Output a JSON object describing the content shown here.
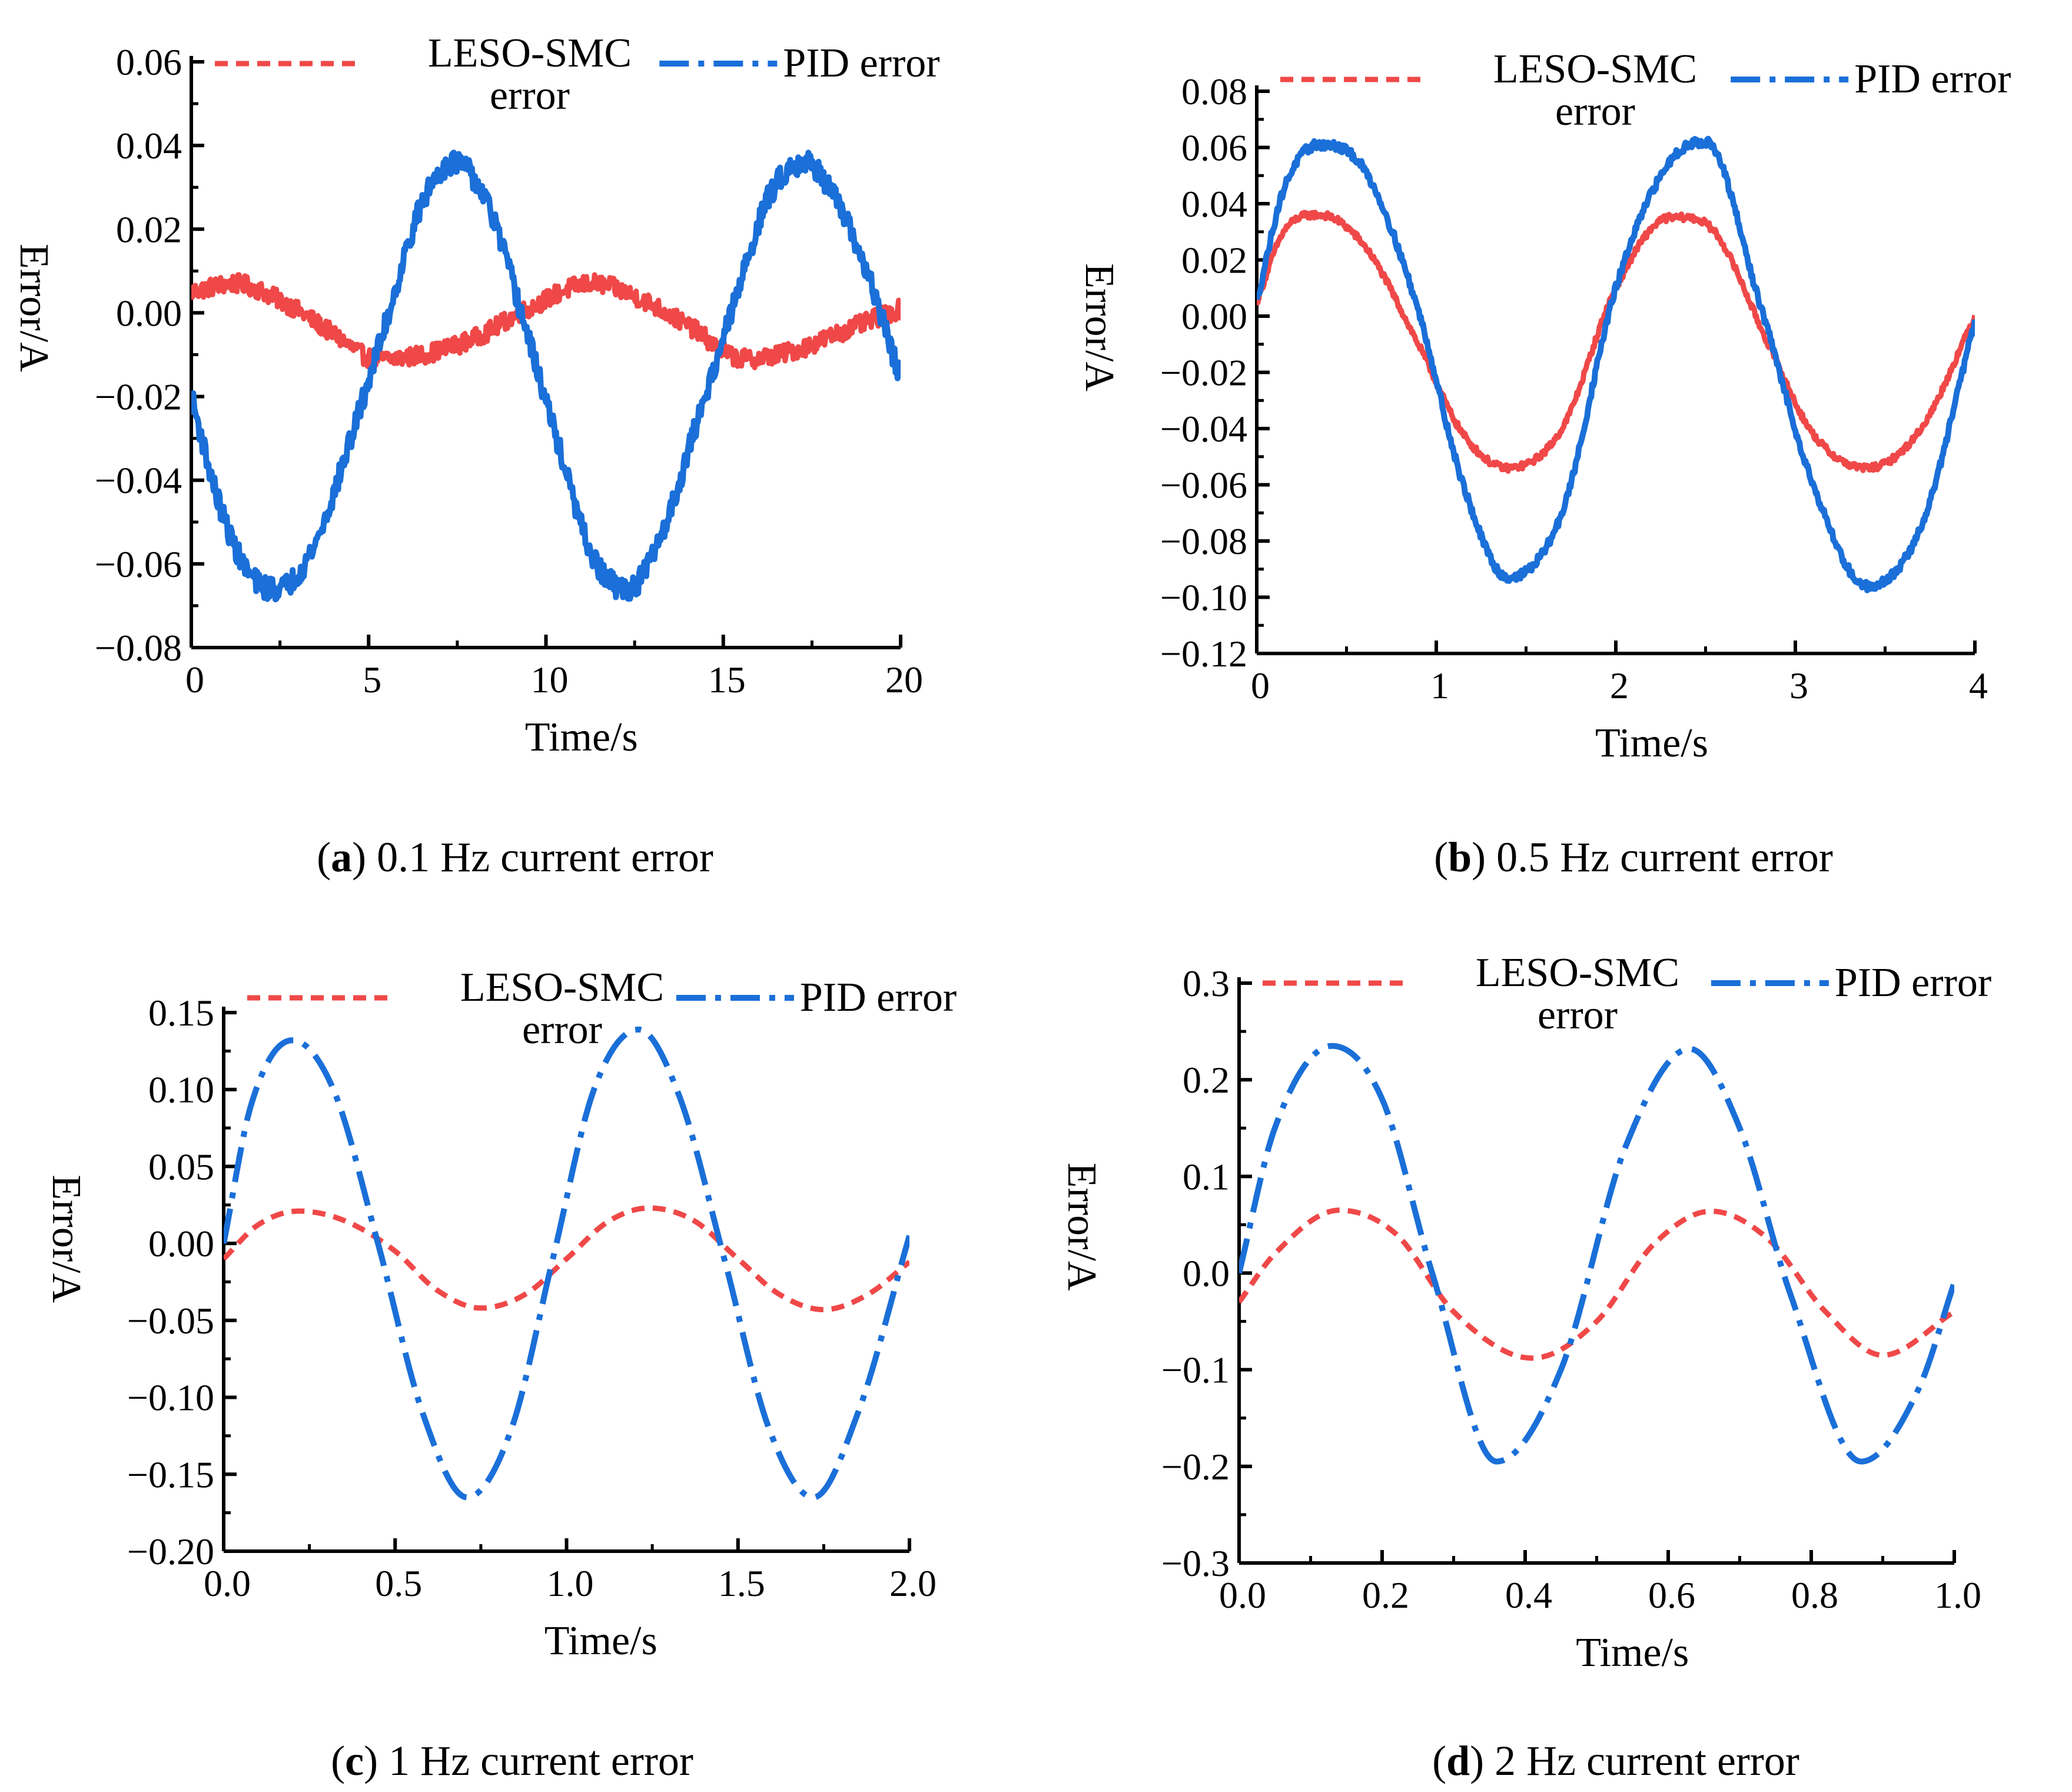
{
  "chart_data": [
    {
      "id": "a",
      "type": "line",
      "caption_letter": "a",
      "caption_text": "0.1 Hz current error",
      "xlabel": "Time/s",
      "ylabel": "Error/A",
      "xlim": [
        0,
        20
      ],
      "ylim": [
        -0.08,
        0.06
      ],
      "xticks": [
        0,
        5,
        10,
        15,
        20
      ],
      "xtick_labels": [
        "0",
        "5",
        "10",
        "15",
        "20"
      ],
      "yticks": [
        0.06,
        0.04,
        0.02,
        0.0,
        -0.02,
        -0.04,
        -0.06,
        -0.08
      ],
      "ytick_labels": [
        "0.06",
        "0.04",
        "0.02",
        "0.00",
        "−0.02",
        "−0.04",
        "−0.06",
        "−0.08"
      ],
      "legend": [
        "LESO-SMC error",
        "PID error"
      ],
      "series": [
        {
          "name": "LESO-SMC error",
          "color": "#f04848",
          "style": "dash",
          "width": 9,
          "noise": 0.0022,
          "x": [
            0,
            1.2,
            2.5,
            4,
            5.2,
            6.5,
            8,
            9.5,
            11.3,
            12.5,
            14,
            15.6,
            17,
            18.5,
            20
          ],
          "y": [
            0.005,
            0.007,
            0.003,
            -0.005,
            -0.011,
            -0.01,
            -0.006,
            0.001,
            0.007,
            0.004,
            -0.003,
            -0.011,
            -0.009,
            -0.004,
            0.001
          ]
        },
        {
          "name": "PID error",
          "color": "#1a6fd8",
          "style": "dashdot",
          "width": 10,
          "noise": 0.0028,
          "x": [
            0,
            0.8,
            1.6,
            2.4,
            3.5,
            4.5,
            5.5,
            6.5,
            7.4,
            8.4,
            9.3,
            10.3,
            11.3,
            12.3,
            13.3,
            14.3,
            15.3,
            16.3,
            17.3,
            18.4,
            19.2,
            20
          ],
          "y": [
            -0.02,
            -0.046,
            -0.062,
            -0.066,
            -0.055,
            -0.03,
            -0.002,
            0.026,
            0.036,
            0.025,
            0.0,
            -0.03,
            -0.058,
            -0.066,
            -0.052,
            -0.025,
            0.002,
            0.028,
            0.036,
            0.023,
            0.006,
            -0.016
          ]
        }
      ]
    },
    {
      "id": "b",
      "type": "line",
      "caption_letter": "b",
      "caption_text": "0.5 Hz current error",
      "xlabel": "Time/s",
      "ylabel": "Error/A",
      "xlim": [
        0,
        4
      ],
      "ylim": [
        -0.12,
        0.08
      ],
      "xticks": [
        0,
        1,
        2,
        3,
        4
      ],
      "xtick_labels": [
        "0",
        "1",
        "2",
        "3",
        "4"
      ],
      "yticks": [
        0.08,
        0.06,
        0.04,
        0.02,
        0.0,
        -0.02,
        -0.04,
        -0.06,
        -0.08,
        -0.1,
        -0.12
      ],
      "ytick_labels": [
        "0.08",
        "0.06",
        "0.04",
        "0.02",
        "0.00",
        "−0.02",
        "−0.04",
        "−0.06",
        "−0.08",
        "−0.10",
        "−0.12"
      ],
      "legend": [
        "LESO-SMC error",
        "PID error"
      ],
      "series": [
        {
          "name": "LESO-SMC error",
          "color": "#f04848",
          "style": "dash",
          "width": 9,
          "noise": 0.0012,
          "x": [
            0,
            0.15,
            0.35,
            0.6,
            0.9,
            1.15,
            1.4,
            1.7,
            2.0,
            2.3,
            2.55,
            2.85,
            3.1,
            3.4,
            3.7,
            4.0
          ],
          "y": [
            0.005,
            0.03,
            0.036,
            0.025,
            -0.01,
            -0.042,
            -0.054,
            -0.04,
            0.01,
            0.035,
            0.03,
            -0.01,
            -0.042,
            -0.054,
            -0.04,
            0.0
          ]
        },
        {
          "name": "PID error",
          "color": "#1a6fd8",
          "style": "dashdot",
          "width": 10,
          "noise": 0.0016,
          "x": [
            0,
            0.15,
            0.35,
            0.6,
            0.9,
            1.15,
            1.4,
            1.7,
            2.0,
            2.3,
            2.5,
            2.8,
            3.1,
            3.4,
            3.7,
            4.0
          ],
          "y": [
            0.005,
            0.045,
            0.061,
            0.052,
            0.002,
            -0.06,
            -0.093,
            -0.07,
            0.01,
            0.055,
            0.062,
            0.005,
            -0.06,
            -0.096,
            -0.075,
            -0.002
          ]
        }
      ]
    },
    {
      "id": "c",
      "type": "line",
      "caption_letter": "c",
      "caption_text": "1 Hz current error",
      "xlabel": "Time/s",
      "ylabel": "Error/A",
      "xlim": [
        0,
        2
      ],
      "ylim": [
        -0.2,
        0.15
      ],
      "xticks": [
        0,
        0.5,
        1.0,
        1.5,
        2.0
      ],
      "xtick_labels": [
        "0.0",
        "0.5",
        "1.0",
        "1.5",
        "2.0"
      ],
      "yticks": [
        0.15,
        0.1,
        0.05,
        0.0,
        -0.05,
        -0.1,
        -0.15,
        -0.2
      ],
      "ytick_labels": [
        "0.15",
        "0.10",
        "0.05",
        "0.00",
        "−0.05",
        "−0.10",
        "−0.15",
        "−0.20"
      ],
      "legend": [
        "LESO-SMC error",
        "PID error"
      ],
      "series": [
        {
          "name": "LESO-SMC error",
          "color": "#f04848",
          "style": "dash",
          "width": 9,
          "noise": 0,
          "x": [
            0,
            0.1,
            0.22,
            0.35,
            0.5,
            0.62,
            0.75,
            0.88,
            1.0,
            1.12,
            1.24,
            1.37,
            1.5,
            1.62,
            1.75,
            1.88,
            2.0
          ],
          "y": [
            -0.01,
            0.012,
            0.021,
            0.015,
            -0.005,
            -0.03,
            -0.042,
            -0.033,
            -0.01,
            0.014,
            0.023,
            0.015,
            -0.01,
            -0.033,
            -0.043,
            -0.033,
            -0.012
          ]
        },
        {
          "name": "PID error",
          "color": "#1a6fd8",
          "style": "dashdot",
          "width": 10,
          "noise": 0,
          "x": [
            0,
            0.08,
            0.2,
            0.32,
            0.45,
            0.58,
            0.71,
            0.84,
            0.96,
            1.08,
            1.21,
            1.33,
            1.46,
            1.59,
            1.72,
            1.85,
            2.0
          ],
          "y": [
            0.0,
            0.09,
            0.132,
            0.1,
            0.0,
            -0.11,
            -0.165,
            -0.12,
            -0.01,
            0.1,
            0.139,
            0.095,
            -0.01,
            -0.12,
            -0.165,
            -0.11,
            0.005
          ]
        }
      ]
    },
    {
      "id": "d",
      "type": "line",
      "caption_letter": "d",
      "caption_text": "2 Hz current error",
      "xlabel": "Time/s",
      "ylabel": "Error/A",
      "xlim": [
        0,
        1
      ],
      "ylim": [
        -0.3,
        0.3
      ],
      "xticks": [
        0,
        0.2,
        0.4,
        0.6,
        0.8,
        1.0
      ],
      "xtick_labels": [
        "0.0",
        "0.2",
        "0.4",
        "0.6",
        "0.8",
        "1.0"
      ],
      "yticks": [
        0.3,
        0.2,
        0.1,
        0.0,
        -0.1,
        -0.2,
        -0.3
      ],
      "ytick_labels": [
        "0.3",
        "0.2",
        "0.1",
        "0.0",
        "−0.1",
        "−0.2",
        "−0.3"
      ],
      "legend": [
        "LESO-SMC error",
        "PID error"
      ],
      "series": [
        {
          "name": "LESO-SMC error",
          "color": "#f04848",
          "style": "dash",
          "width": 9,
          "noise": 0,
          "x": [
            0,
            0.05,
            0.14,
            0.22,
            0.3,
            0.41,
            0.5,
            0.58,
            0.66,
            0.74,
            0.82,
            0.9,
            1.0
          ],
          "y": [
            -0.03,
            0.02,
            0.065,
            0.04,
            -0.04,
            -0.088,
            -0.05,
            0.03,
            0.064,
            0.035,
            -0.04,
            -0.085,
            -0.04
          ]
        },
        {
          "name": "PID error",
          "color": "#1a6fd8",
          "style": "dashdot",
          "width": 10,
          "noise": 0,
          "x": [
            0,
            0.05,
            0.13,
            0.2,
            0.27,
            0.36,
            0.45,
            0.54,
            0.63,
            0.7,
            0.77,
            0.87,
            0.95,
            1.0
          ],
          "y": [
            0.0,
            0.15,
            0.235,
            0.18,
            0.0,
            -0.195,
            -0.1,
            0.13,
            0.232,
            0.15,
            -0.02,
            -0.195,
            -0.12,
            -0.01
          ]
        }
      ]
    }
  ]
}
